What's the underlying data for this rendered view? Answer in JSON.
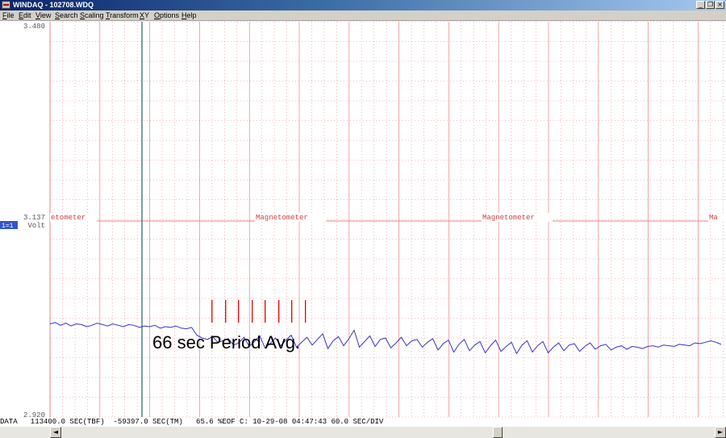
{
  "window": {
    "title": "WINDAQ - 102708.WDQ",
    "buttons": {
      "minimize": "_",
      "restore": "❐",
      "close": "×"
    }
  },
  "menu": [
    "File",
    "Edit",
    "View",
    "Search",
    "Scaling",
    "Transform",
    "XY",
    "Options",
    "Help"
  ],
  "plot": {
    "y_top": "3.480",
    "y_mid": "3.137",
    "y_bottom": "2.920",
    "channel_badge": "1=1",
    "unit": "Volt",
    "annotations": [
      "etometer",
      "Magnetometer",
      "Magnetometer",
      "Ma"
    ],
    "caption": "66 sec Period Avg.",
    "colors": {
      "grid": "#f08080",
      "trace": "#3333cc",
      "cursor": "#2f6f6a",
      "marker": "#e00000",
      "badge_bg": "#3355cc"
    },
    "trace_volts": [
      3.052,
      3.054,
      3.05,
      3.053,
      3.049,
      3.052,
      3.051,
      3.048,
      3.05,
      3.053,
      3.051,
      3.049,
      3.052,
      3.05,
      3.048,
      3.051,
      3.05,
      3.047,
      3.049,
      3.048,
      3.05,
      3.046,
      3.048,
      3.047,
      3.049,
      3.046,
      3.045,
      3.047,
      3.036,
      3.032,
      3.03,
      3.034,
      3.026,
      3.028,
      3.031,
      3.022,
      3.025,
      3.033,
      3.02,
      3.027,
      3.035,
      3.018,
      3.024,
      3.032,
      3.021,
      3.029,
      3.036,
      3.019,
      3.026,
      3.033,
      3.022,
      3.03,
      3.038,
      3.017,
      3.028,
      3.034,
      3.021,
      3.031,
      3.043,
      3.019,
      3.027,
      3.035,
      3.02,
      3.03,
      3.032,
      3.018,
      3.025,
      3.033,
      3.021,
      3.028,
      3.03,
      3.019,
      3.026,
      3.031,
      3.015,
      3.024,
      3.029,
      3.012,
      3.023,
      3.03,
      3.014,
      3.022,
      3.027,
      3.011,
      3.021,
      3.029,
      3.013,
      3.02,
      3.026,
      3.01,
      3.022,
      3.028,
      3.012,
      3.021,
      3.027,
      3.011,
      3.019,
      3.025,
      3.014,
      3.022,
      3.024,
      3.013,
      3.02,
      3.025,
      3.016,
      3.021,
      3.023,
      3.015,
      3.019,
      3.021,
      3.016,
      3.02,
      3.019,
      3.017,
      3.02,
      3.021,
      3.019,
      3.022,
      3.021,
      3.02,
      3.023,
      3.022,
      3.021,
      3.025,
      3.024,
      3.026,
      3.028,
      3.026,
      3.023
    ],
    "markers_sec": [
      257,
      274,
      290,
      307,
      323,
      340,
      356,
      373
    ]
  },
  "status_bar": {
    "text": "DATA   113400.0 SEC(TBF)  -59397.0 SEC(TM)   65.6 %EOF C: 10-29-08 04:47:43 60.0 SEC/DIV"
  },
  "scrollbar": {
    "left_arrow": "◄",
    "right_arrow": "►"
  }
}
